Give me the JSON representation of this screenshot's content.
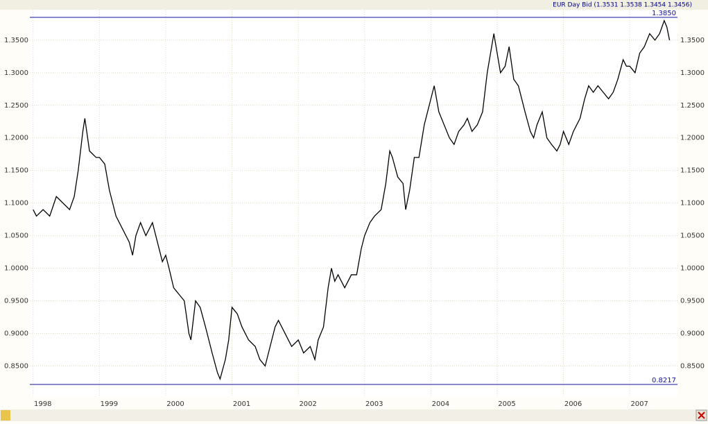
{
  "chart_data": {
    "type": "line",
    "title": "EUR Day Bid (1.3531 1.3538 1.3454 1.3456)",
    "x": [
      1998.0,
      1998.05,
      1998.15,
      1998.25,
      1998.35,
      1998.45,
      1998.55,
      1998.62,
      1998.68,
      1998.75,
      1998.78,
      1998.85,
      1998.95,
      1999.0,
      1999.08,
      1999.15,
      1999.25,
      1999.35,
      1999.45,
      1999.5,
      1999.55,
      1999.62,
      1999.7,
      1999.8,
      1999.85,
      1999.95,
      2000.0,
      2000.05,
      2000.12,
      2000.2,
      2000.28,
      2000.35,
      2000.38,
      2000.45,
      2000.52,
      2000.6,
      2000.7,
      2000.78,
      2000.82,
      2000.9,
      2000.95,
      2001.0,
      2001.08,
      2001.15,
      2001.25,
      2001.35,
      2001.42,
      2001.5,
      2001.55,
      2001.65,
      2001.7,
      2001.8,
      2001.9,
      2002.0,
      2002.08,
      2002.18,
      2002.25,
      2002.3,
      2002.38,
      2002.45,
      2002.5,
      2002.55,
      2002.6,
      2002.7,
      2002.8,
      2002.88,
      2002.95,
      2003.0,
      2003.08,
      2003.15,
      2003.25,
      2003.32,
      2003.38,
      2003.42,
      2003.5,
      2003.58,
      2003.62,
      2003.68,
      2003.75,
      2003.82,
      2003.9,
      2004.0,
      2004.05,
      2004.12,
      2004.2,
      2004.28,
      2004.35,
      2004.42,
      2004.5,
      2004.55,
      2004.62,
      2004.7,
      2004.78,
      2004.85,
      2004.9,
      2004.95,
      2005.0,
      2005.05,
      2005.12,
      2005.18,
      2005.25,
      2005.32,
      2005.42,
      2005.5,
      2005.55,
      2005.6,
      2005.68,
      2005.75,
      2005.82,
      2005.9,
      2005.95,
      2006.0,
      2006.08,
      2006.15,
      2006.25,
      2006.32,
      2006.38,
      2006.45,
      2006.52,
      2006.6,
      2006.68,
      2006.75,
      2006.82,
      2006.9,
      2006.95,
      2007.0,
      2007.08,
      2007.15,
      2007.22,
      2007.3,
      2007.38,
      2007.45,
      2007.52,
      2007.56,
      2007.6
    ],
    "series": [
      {
        "color": "#000000",
        "values": [
          1.09,
          1.08,
          1.09,
          1.08,
          1.11,
          1.1,
          1.09,
          1.11,
          1.15,
          1.21,
          1.23,
          1.18,
          1.17,
          1.17,
          1.16,
          1.12,
          1.08,
          1.06,
          1.04,
          1.02,
          1.05,
          1.07,
          1.05,
          1.07,
          1.05,
          1.01,
          1.02,
          1.0,
          0.97,
          0.96,
          0.95,
          0.9,
          0.89,
          0.95,
          0.94,
          0.91,
          0.87,
          0.84,
          0.83,
          0.86,
          0.89,
          0.94,
          0.93,
          0.91,
          0.89,
          0.88,
          0.86,
          0.85,
          0.87,
          0.91,
          0.92,
          0.9,
          0.88,
          0.89,
          0.87,
          0.88,
          0.86,
          0.89,
          0.91,
          0.97,
          1.0,
          0.98,
          0.99,
          0.97,
          0.99,
          0.99,
          1.03,
          1.05,
          1.07,
          1.08,
          1.09,
          1.13,
          1.18,
          1.17,
          1.14,
          1.13,
          1.09,
          1.12,
          1.17,
          1.17,
          1.22,
          1.26,
          1.28,
          1.24,
          1.22,
          1.2,
          1.19,
          1.21,
          1.22,
          1.23,
          1.21,
          1.22,
          1.24,
          1.3,
          1.33,
          1.36,
          1.33,
          1.3,
          1.31,
          1.34,
          1.29,
          1.28,
          1.24,
          1.21,
          1.2,
          1.22,
          1.24,
          1.2,
          1.19,
          1.18,
          1.19,
          1.21,
          1.19,
          1.21,
          1.23,
          1.26,
          1.28,
          1.27,
          1.28,
          1.27,
          1.26,
          1.27,
          1.29,
          1.32,
          1.31,
          1.31,
          1.3,
          1.33,
          1.34,
          1.36,
          1.35,
          1.36,
          1.38,
          1.37,
          1.35
        ]
      }
    ],
    "xlim": [
      1997.95,
      2007.72
    ],
    "xticks": [
      1998,
      1999,
      2000,
      2001,
      2002,
      2003,
      2004,
      2005,
      2006,
      2007
    ],
    "ylim": [
      0.8036,
      1.3967
    ],
    "yticks": [
      {
        "value": 0.85,
        "label": "0.8500"
      },
      {
        "value": 0.9,
        "label": "0.9000"
      },
      {
        "value": 0.95,
        "label": "0.9500"
      },
      {
        "value": 1.0,
        "label": "1.0000"
      },
      {
        "value": 1.05,
        "label": "1.0500"
      },
      {
        "value": 1.1,
        "label": "1.1000"
      },
      {
        "value": 1.15,
        "label": "1.1500"
      },
      {
        "value": 1.2,
        "label": "1.2000"
      },
      {
        "value": 1.25,
        "label": "1.2500"
      },
      {
        "value": 1.3,
        "label": "1.3000"
      },
      {
        "value": 1.35,
        "label": "1.3500"
      }
    ],
    "annotations": [
      {
        "value": 1.385,
        "label": "1.3850"
      },
      {
        "value": 0.8217,
        "label": "0.8217"
      }
    ],
    "grid": true
  }
}
